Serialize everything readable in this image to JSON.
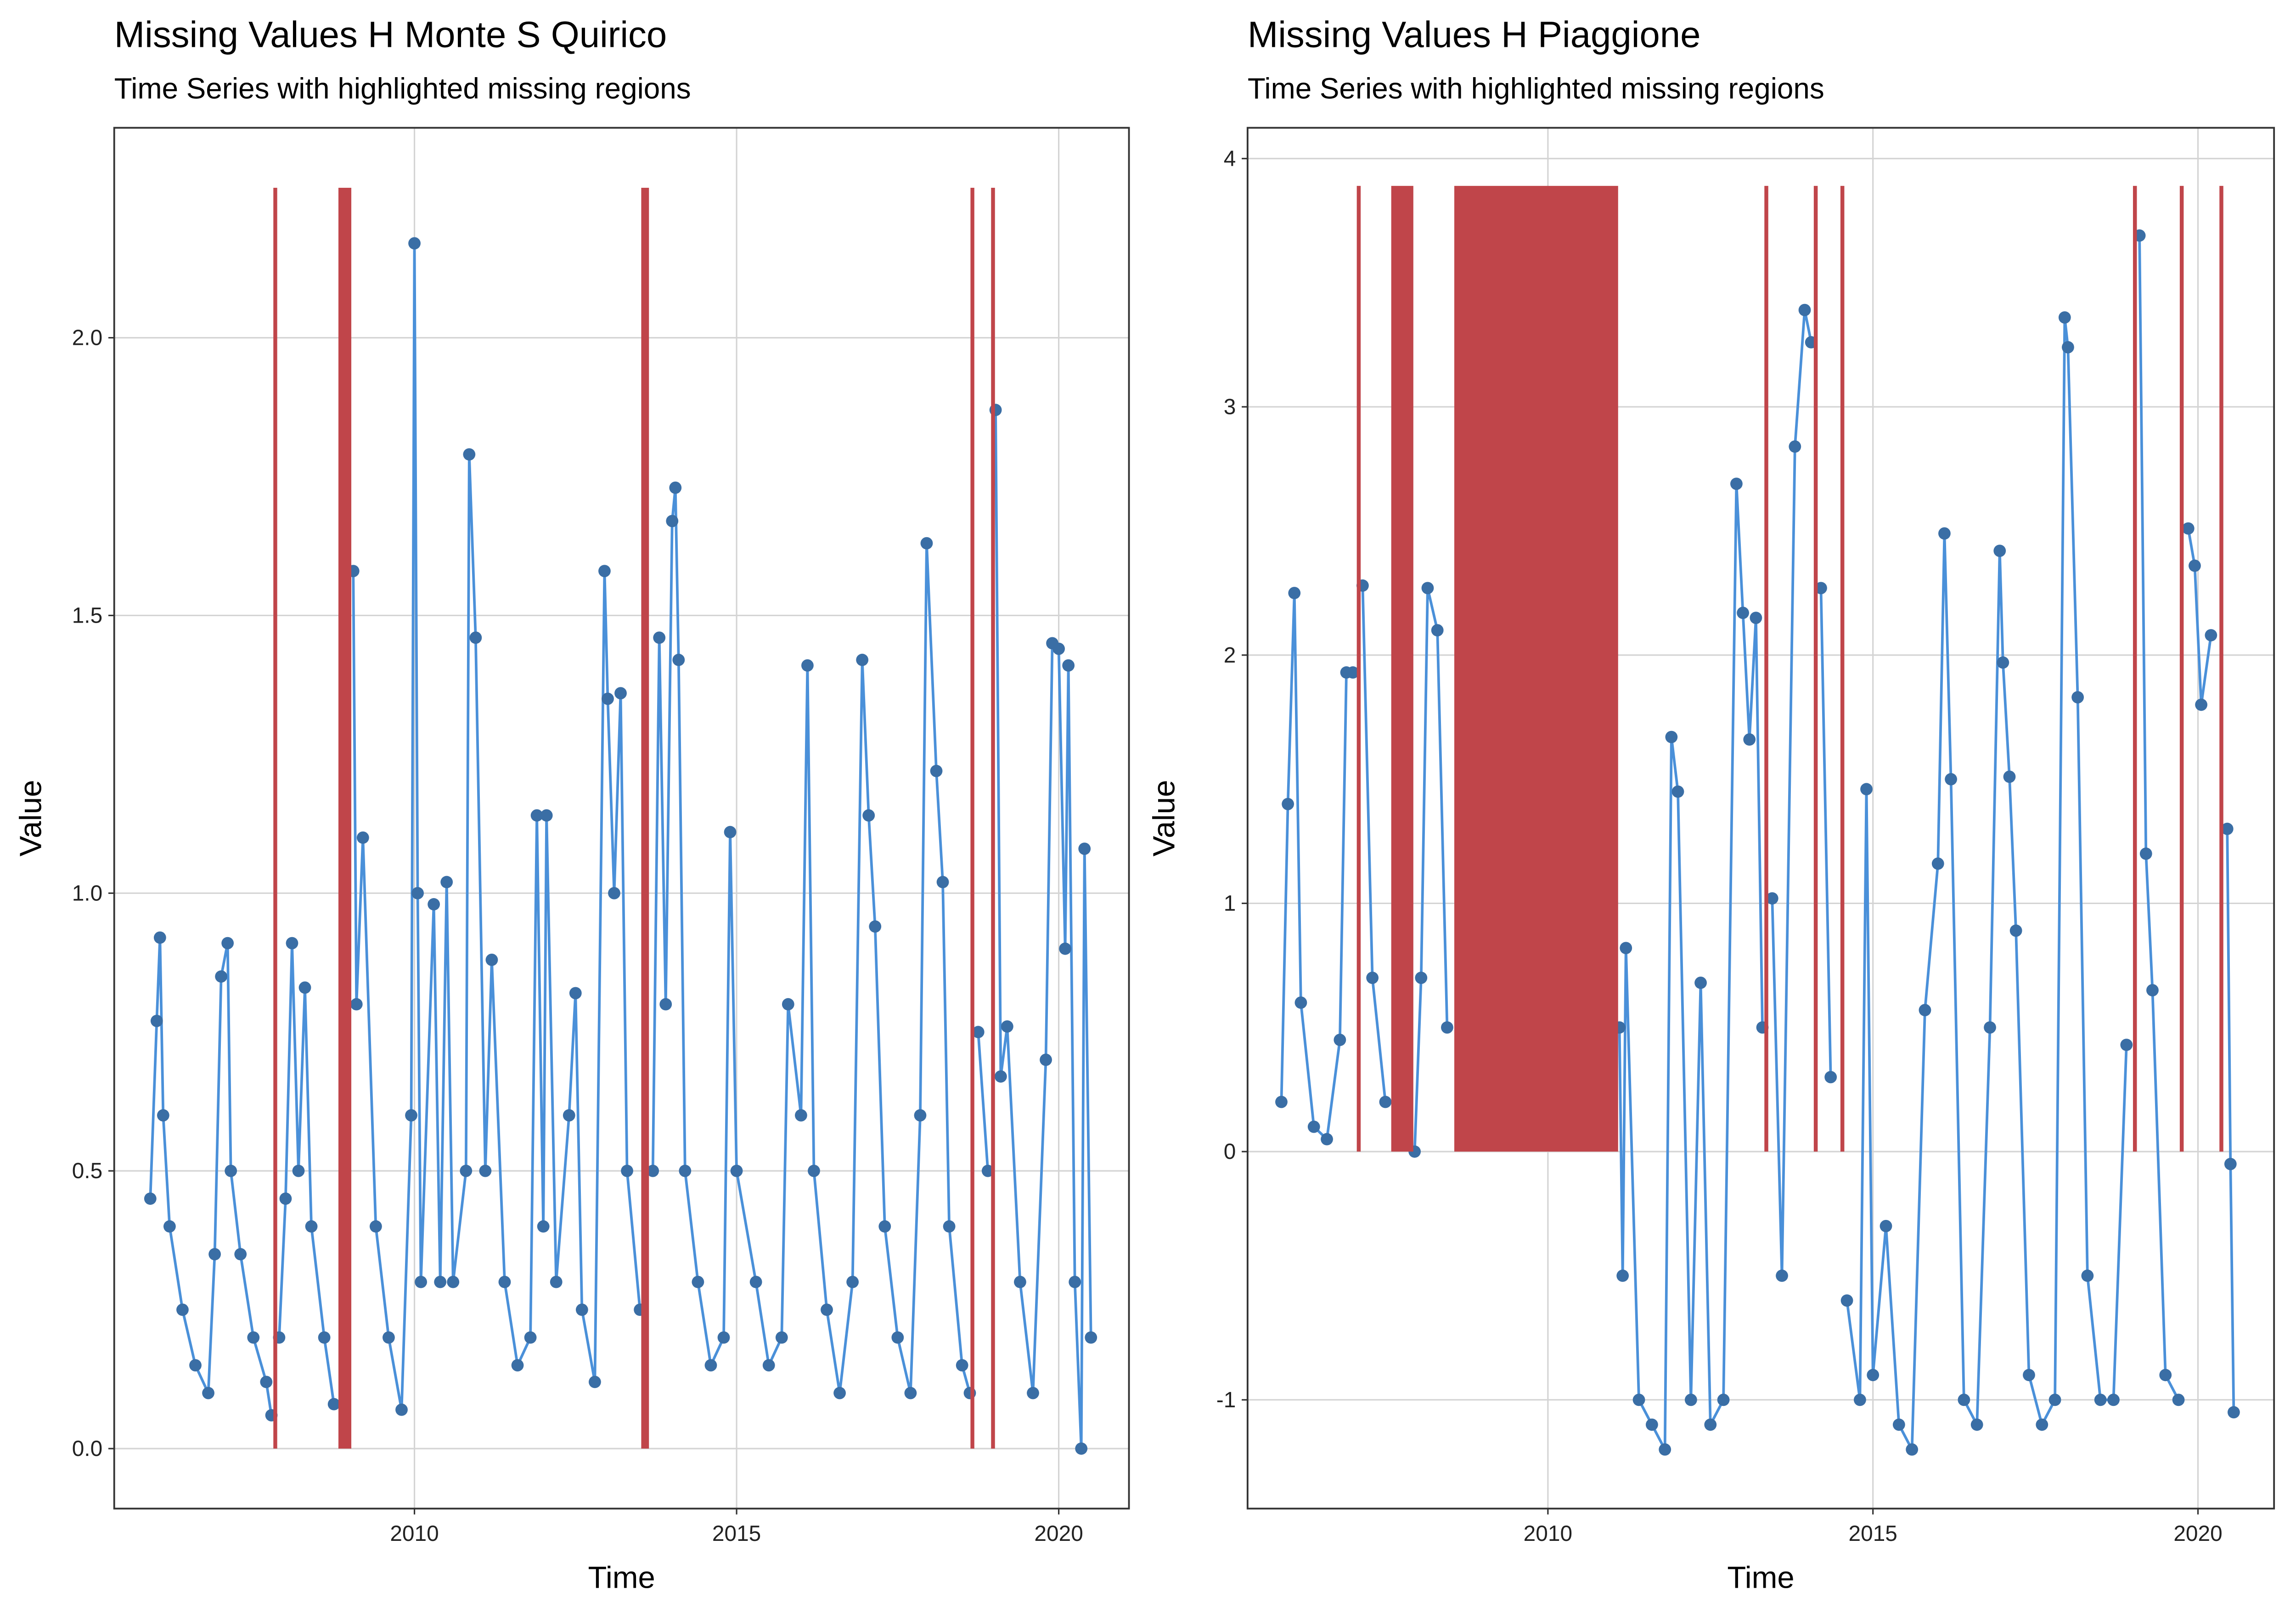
{
  "chart_data": [
    {
      "type": "line",
      "title": "Missing Values H Monte S Quirico",
      "subtitle": "Time Series with highlighted missing regions",
      "x_label": "Time",
      "y_label": "Value",
      "xlim": [
        2005.34,
        2021.09
      ],
      "ylim": [
        -0.108,
        2.378
      ],
      "xticks": [
        2010,
        2015,
        2020
      ],
      "yticks": [
        {
          "value": 0,
          "label": "0.0"
        },
        0.5,
        {
          "value": 1,
          "label": "1.0"
        },
        1.5,
        {
          "value": 2,
          "label": "2.0"
        }
      ],
      "grid": true,
      "line_color": "#4a90d9",
      "point_color": "#3a6ea5",
      "x": [
        2005.9,
        2006.0,
        2006.05,
        2006.1,
        2006.2,
        2006.4,
        2006.6,
        2006.8,
        2006.9,
        2007.0,
        2007.1,
        2007.15,
        2007.3,
        2007.5,
        2007.7,
        2007.78,
        2007.84,
        2007.9,
        2008.0,
        2008.1,
        2008.2,
        2008.3,
        2008.4,
        2008.6,
        2008.75,
        2008.9,
        2009.05,
        2009.1,
        2009.2,
        2009.4,
        2009.6,
        2009.8,
        2009.95,
        2010.0,
        2010.05,
        2010.1,
        2010.3,
        2010.4,
        2010.5,
        2010.6,
        2010.8,
        2010.85,
        2010.95,
        2011.1,
        2011.2,
        2011.4,
        2011.6,
        2011.8,
        2011.9,
        2012.0,
        2012.05,
        2012.2,
        2012.4,
        2012.5,
        2012.6,
        2012.8,
        2012.95,
        2013.0,
        2013.1,
        2013.2,
        2013.3,
        2013.5,
        2013.58,
        2013.7,
        2013.8,
        2013.9,
        2014.0,
        2014.05,
        2014.1,
        2014.2,
        2014.4,
        2014.6,
        2014.8,
        2014.9,
        2015.0,
        2015.3,
        2015.5,
        2015.7,
        2015.8,
        2016.0,
        2016.1,
        2016.2,
        2016.4,
        2016.6,
        2016.8,
        2016.95,
        2017.05,
        2017.15,
        2017.3,
        2017.5,
        2017.7,
        2017.85,
        2017.95,
        2018.1,
        2018.2,
        2018.3,
        2018.5,
        2018.62,
        2018.66,
        2018.75,
        2018.9,
        2018.98,
        2019.02,
        2019.1,
        2019.2,
        2019.4,
        2019.6,
        2019.8,
        2019.9,
        2020.0,
        2020.1,
        2020.15,
        2020.25,
        2020.35,
        2020.4,
        2020.5
      ],
      "values": [
        0.45,
        0.77,
        0.92,
        0.6,
        0.4,
        0.25,
        0.15,
        0.1,
        0.35,
        0.85,
        0.91,
        0.5,
        0.35,
        0.2,
        0.12,
        0.06,
        null,
        0.2,
        0.45,
        0.91,
        0.5,
        0.83,
        0.4,
        0.2,
        0.08,
        null,
        1.58,
        0.8,
        1.1,
        0.4,
        0.2,
        0.07,
        0.6,
        2.17,
        1.0,
        0.3,
        0.98,
        0.3,
        1.02,
        0.3,
        0.5,
        1.79,
        1.46,
        0.5,
        0.88,
        0.3,
        0.15,
        0.2,
        1.14,
        0.4,
        1.14,
        0.3,
        0.6,
        0.82,
        0.25,
        0.12,
        1.58,
        1.35,
        1.0,
        1.36,
        0.5,
        0.25,
        null,
        0.5,
        1.46,
        0.8,
        1.67,
        1.73,
        1.42,
        0.5,
        0.3,
        0.15,
        0.2,
        1.11,
        0.5,
        0.3,
        0.15,
        0.2,
        0.8,
        0.6,
        1.41,
        0.5,
        0.25,
        0.1,
        0.3,
        1.42,
        1.14,
        0.94,
        0.4,
        0.2,
        0.1,
        0.6,
        1.63,
        1.22,
        1.02,
        0.4,
        0.15,
        0.1,
        null,
        0.75,
        0.5,
        null,
        1.87,
        0.67,
        0.76,
        0.3,
        0.1,
        0.7,
        1.45,
        1.44,
        0.9,
        1.41,
        0.3,
        0.0,
        1.08,
        0.2
      ],
      "highlight_color": "#c0454a",
      "highlight_ylim": [
        0,
        2.27
      ],
      "highlight_regions": [
        {
          "start": 2007.81,
          "end": 2007.87
        },
        {
          "start": 2008.82,
          "end": 2009.02
        },
        {
          "start": 2013.52,
          "end": 2013.64
        },
        {
          "start": 2018.63,
          "end": 2018.69
        },
        {
          "start": 2018.95,
          "end": 2019.01
        }
      ]
    },
    {
      "type": "line",
      "title": "Missing Values H Piaggione",
      "subtitle": "Time Series with highlighted missing regions",
      "x_label": "Time",
      "y_label": "Value",
      "xlim": [
        2005.38,
        2021.17
      ],
      "ylim": [
        -1.438,
        4.124
      ],
      "xticks": [
        2010,
        2015,
        2020
      ],
      "yticks": [
        -1,
        0,
        1,
        2,
        3,
        4
      ],
      "grid": true,
      "line_color": "#4a90d9",
      "point_color": "#3a6ea5",
      "x": [
        2005.9,
        2006.0,
        2006.1,
        2006.2,
        2006.4,
        2006.6,
        2006.8,
        2006.9,
        2007.0,
        2007.09,
        2007.15,
        2007.3,
        2007.5,
        2007.75,
        2007.95,
        2008.05,
        2008.15,
        2008.3,
        2008.45,
        2009.8,
        2011.1,
        2011.15,
        2011.2,
        2011.4,
        2011.6,
        2011.8,
        2011.9,
        2012.0,
        2012.2,
        2012.35,
        2012.5,
        2012.7,
        2012.9,
        2013.0,
        2013.1,
        2013.2,
        2013.3,
        2013.36,
        2013.45,
        2013.6,
        2013.8,
        2013.95,
        2014.05,
        2014.12,
        2014.2,
        2014.35,
        2014.53,
        2014.6,
        2014.8,
        2014.9,
        2015.0,
        2015.2,
        2015.4,
        2015.6,
        2015.8,
        2016.0,
        2016.1,
        2016.2,
        2016.4,
        2016.6,
        2016.8,
        2016.95,
        2017.0,
        2017.1,
        2017.2,
        2017.4,
        2017.6,
        2017.8,
        2017.95,
        2018.0,
        2018.15,
        2018.3,
        2018.5,
        2018.7,
        2018.9,
        2019.03,
        2019.1,
        2019.2,
        2019.3,
        2019.5,
        2019.7,
        2019.75,
        2019.85,
        2019.95,
        2020.05,
        2020.2,
        2020.36,
        2020.45,
        2020.5,
        2020.55
      ],
      "values": [
        0.2,
        1.4,
        2.25,
        0.6,
        0.1,
        0.05,
        0.45,
        1.93,
        1.93,
        null,
        2.28,
        0.7,
        0.2,
        null,
        0.0,
        0.7,
        2.27,
        2.1,
        0.5,
        null,
        0.5,
        -0.5,
        0.82,
        -1.0,
        -1.1,
        -1.2,
        1.67,
        1.45,
        -1.0,
        0.68,
        -1.1,
        -1.0,
        2.69,
        2.17,
        1.66,
        2.15,
        0.5,
        null,
        1.02,
        -0.5,
        2.84,
        3.39,
        3.26,
        null,
        2.27,
        0.3,
        null,
        -0.6,
        -1.0,
        1.46,
        -0.9,
        -0.3,
        -1.1,
        -1.2,
        0.57,
        1.16,
        2.49,
        1.5,
        -1.0,
        -1.1,
        0.5,
        2.42,
        1.97,
        1.51,
        0.89,
        -0.9,
        -1.1,
        -1.0,
        3.36,
        3.24,
        1.83,
        -0.5,
        -1.0,
        -1.0,
        0.43,
        null,
        3.69,
        1.2,
        0.65,
        -0.9,
        -1.0,
        null,
        2.51,
        2.36,
        1.8,
        2.08,
        null,
        1.3,
        -0.05,
        -1.05
      ],
      "highlight_color": "#c0454a",
      "highlight_ylim": [
        0,
        3.89
      ],
      "highlight_regions": [
        {
          "start": 2007.06,
          "end": 2007.12
        },
        {
          "start": 2007.59,
          "end": 2007.93
        },
        {
          "start": 2008.56,
          "end": 2011.08
        },
        {
          "start": 2013.33,
          "end": 2013.39
        },
        {
          "start": 2014.09,
          "end": 2014.15
        },
        {
          "start": 2014.5,
          "end": 2014.56
        },
        {
          "start": 2019.0,
          "end": 2019.06
        },
        {
          "start": 2019.72,
          "end": 2019.78
        },
        {
          "start": 2020.33,
          "end": 2020.39
        }
      ]
    }
  ]
}
